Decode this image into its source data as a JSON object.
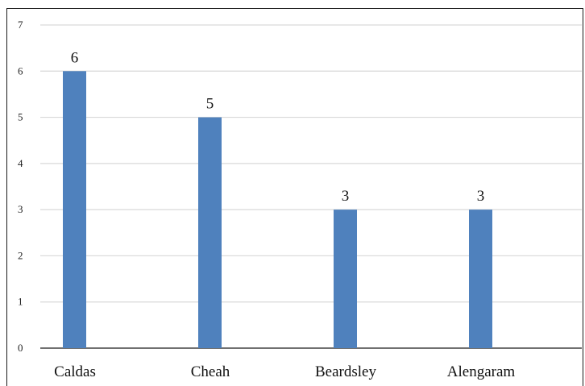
{
  "chart_data": {
    "type": "bar",
    "categories": [
      "Caldas",
      "Cheah",
      "Beardsley",
      "Alengaram"
    ],
    "values": [
      6,
      5,
      3,
      3
    ],
    "data_labels": [
      "6",
      "5",
      "3",
      "3"
    ],
    "y_ticks": [
      "0",
      "1",
      "2",
      "3",
      "4",
      "5",
      "6",
      "7"
    ],
    "ylim": [
      0,
      7
    ],
    "grid": true,
    "bar_color": "#4f81bd",
    "grid_color": "#d9d9d9"
  }
}
